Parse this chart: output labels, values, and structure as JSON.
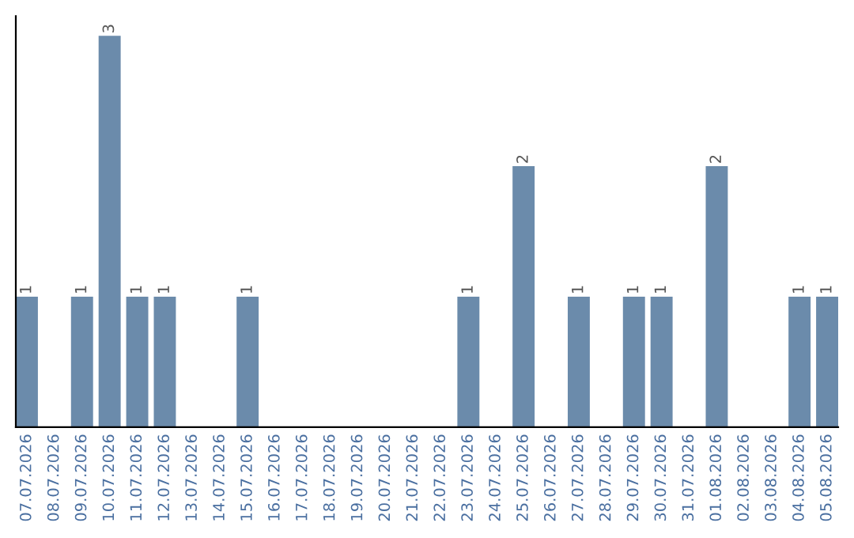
{
  "chart_data": {
    "type": "bar",
    "categories": [
      "07.07.2026",
      "08.07.2026",
      "09.07.2026",
      "10.07.2026",
      "11.07.2026",
      "12.07.2026",
      "13.07.2026",
      "14.07.2026",
      "15.07.2026",
      "16.07.2026",
      "17.07.2026",
      "18.07.2026",
      "19.07.2026",
      "20.07.2026",
      "21.07.2026",
      "22.07.2026",
      "23.07.2026",
      "24.07.2026",
      "25.07.2026",
      "26.07.2026",
      "27.07.2026",
      "28.07.2026",
      "29.07.2026",
      "30.07.2026",
      "31.07.2026",
      "01.08.2026",
      "02.08.2026",
      "03.08.2026",
      "04.08.2026",
      "05.08.2026"
    ],
    "values": [
      1,
      0,
      1,
      3,
      1,
      1,
      0,
      0,
      1,
      0,
      0,
      0,
      0,
      0,
      0,
      0,
      1,
      0,
      2,
      0,
      1,
      0,
      1,
      1,
      0,
      2,
      0,
      0,
      1,
      1
    ],
    "value_labels": [
      "1",
      null,
      "1",
      "3",
      "1",
      "1",
      null,
      null,
      "1",
      null,
      null,
      null,
      null,
      null,
      null,
      null,
      "1",
      null,
      "2",
      null,
      "1",
      null,
      "1",
      "1",
      null,
      "2",
      null,
      null,
      "1",
      "1"
    ],
    "color": "#6b8bab",
    "tick_labels": "x",
    "grid": false,
    "legend": false
  }
}
